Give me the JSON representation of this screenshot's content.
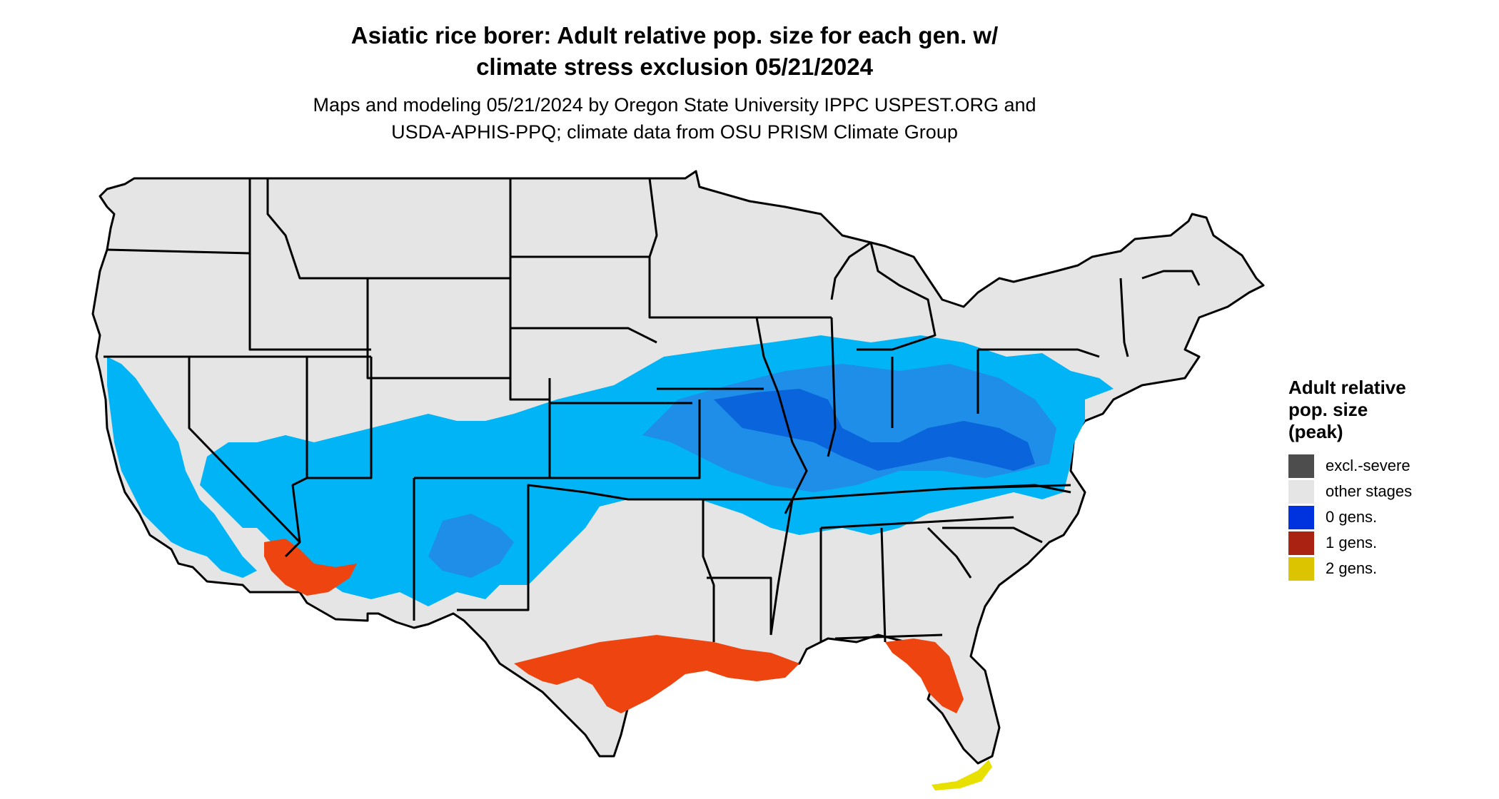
{
  "title": {
    "line1": "Asiatic rice borer: Adult relative pop. size for each gen. w/",
    "line2": "climate stress exclusion 05/21/2024"
  },
  "subtitle": {
    "line1": "Maps and modeling 05/21/2024 by Oregon State University IPPC USPEST.ORG and",
    "line2": "USDA-APHIS-PPQ; climate data from OSU PRISM Climate Group"
  },
  "legend": {
    "title_line1": "Adult relative",
    "title_line2": "pop. size",
    "title_line3": "(peak)",
    "items": [
      {
        "label": "excl.-severe",
        "color": "#4d4d4d"
      },
      {
        "label": "other stages",
        "color": "#e5e5e5"
      },
      {
        "label": "0 gens.",
        "color": "#0033dd"
      },
      {
        "label": "1 gens.",
        "color": "#aa2211"
      },
      {
        "label": "2 gens.",
        "color": "#ddc400"
      }
    ]
  },
  "colors": {
    "land": "#e5e5e5",
    "border": "#000000",
    "light_blue": "#00b4f5",
    "mid_blue": "#1e8ee8",
    "dark_blue": "#0a64dc",
    "orange_red": "#ee4410",
    "yellow": "#e8e000"
  }
}
